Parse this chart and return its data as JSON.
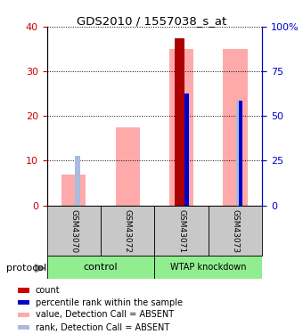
{
  "title": "GDS2010 / 1557038_s_at",
  "samples": [
    "GSM43070",
    "GSM43072",
    "GSM43071",
    "GSM43073"
  ],
  "bar_positions": [
    1,
    2,
    3,
    4
  ],
  "value_absent": [
    7,
    17.5,
    35,
    35
  ],
  "rank_absent": [
    11,
    0,
    0,
    23.5
  ],
  "count_red": [
    0,
    0,
    37.5,
    0
  ],
  "percentile_blue": [
    0,
    0,
    25,
    23.5
  ],
  "ylim_left": [
    0,
    40
  ],
  "ylim_right": [
    0,
    100
  ],
  "yticks_left": [
    0,
    10,
    20,
    30,
    40
  ],
  "yticks_right": [
    0,
    25,
    50,
    75,
    100
  ],
  "ytick_labels_right": [
    "0",
    "25",
    "50",
    "75",
    "100%"
  ],
  "left_axis_color": "#cc0000",
  "right_axis_color": "#0000cc",
  "color_value_absent": "#ffaaaa",
  "color_rank_absent": "#aabbdd",
  "color_count": "#aa0000",
  "color_percentile": "#0000cc",
  "sample_label_box_color": "#c8c8c8",
  "legend_items": [
    {
      "color": "#cc0000",
      "label": "count"
    },
    {
      "color": "#0000cc",
      "label": "percentile rank within the sample"
    },
    {
      "color": "#ffaaaa",
      "label": "value, Detection Call = ABSENT"
    },
    {
      "color": "#aabbdd",
      "label": "rank, Detection Call = ABSENT"
    }
  ],
  "green_color": "#90ee90",
  "group_label1": "control",
  "group_label2": "WTAP knockdown"
}
